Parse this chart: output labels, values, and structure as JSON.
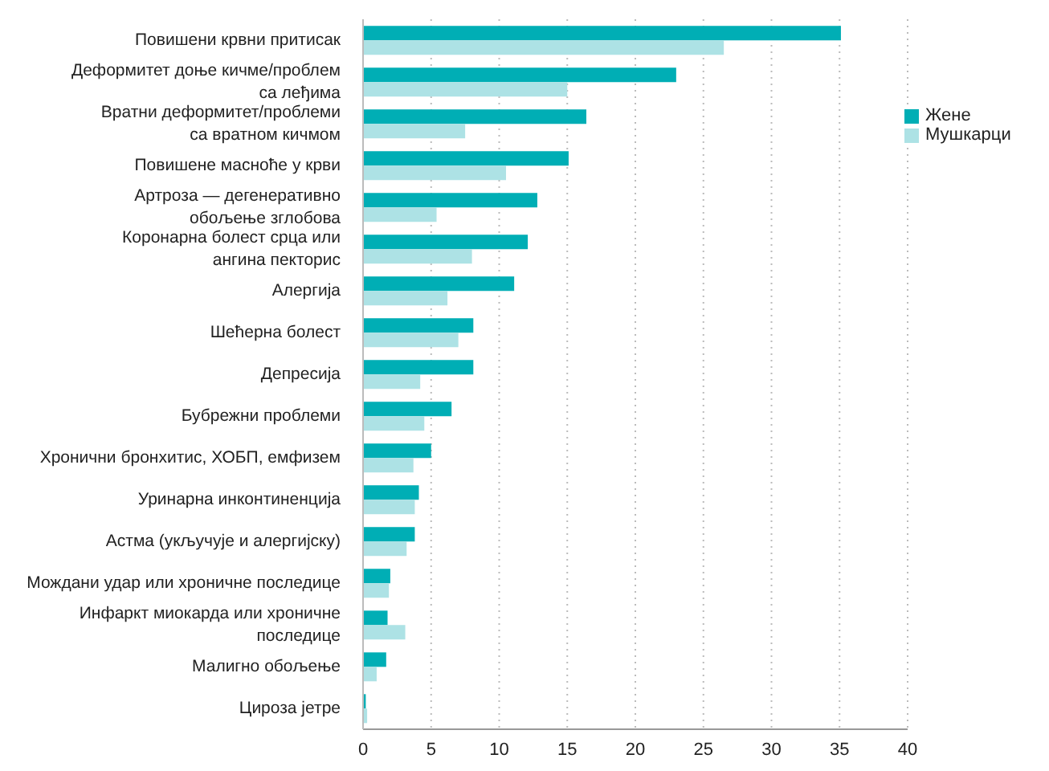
{
  "chart_data": {
    "type": "bar",
    "orientation": "horizontal",
    "categories": [
      "Повишени крвни притисак",
      "Деформитет доње кичме/проблем\nса леђима",
      "Вратни деформитет/проблеми\nса вратном кичмом",
      "Повишене масноће у крви",
      "Артроза — дегенеративно\nобољење зглобова",
      "Коронарна болест срца или\nангина пекторис",
      "Алергија",
      "Шећерна болест",
      "Депресија",
      "Бубрежни проблеми",
      "Хронични бронхитис, ХОБП, емфизем",
      "Уринарна инконтиненција",
      "Астма (укључује и алергијску)",
      "Мождани удар или хроничне последице",
      "Инфаркт миокарда или хроничне\nпоследице",
      "Малигно обољење",
      "Цироза јетре"
    ],
    "series": [
      {
        "name": "Жене",
        "color": "#00aeb5",
        "values": [
          35.1,
          23.0,
          16.4,
          15.1,
          12.8,
          12.1,
          11.1,
          8.1,
          8.1,
          6.5,
          5.0,
          4.1,
          3.8,
          2.0,
          1.8,
          1.7,
          0.2
        ]
      },
      {
        "name": "Мушкарци",
        "color": "#ade2e5",
        "values": [
          26.5,
          15.0,
          7.5,
          10.5,
          5.4,
          8.0,
          6.2,
          7.0,
          4.2,
          4.5,
          3.7,
          3.8,
          3.2,
          1.9,
          3.1,
          1.0,
          0.3
        ]
      }
    ],
    "xlim": [
      0,
      40
    ],
    "xticks": [
      0,
      5,
      10,
      15,
      20,
      25,
      30,
      35,
      40
    ],
    "grid": "x",
    "legend": "top right"
  }
}
